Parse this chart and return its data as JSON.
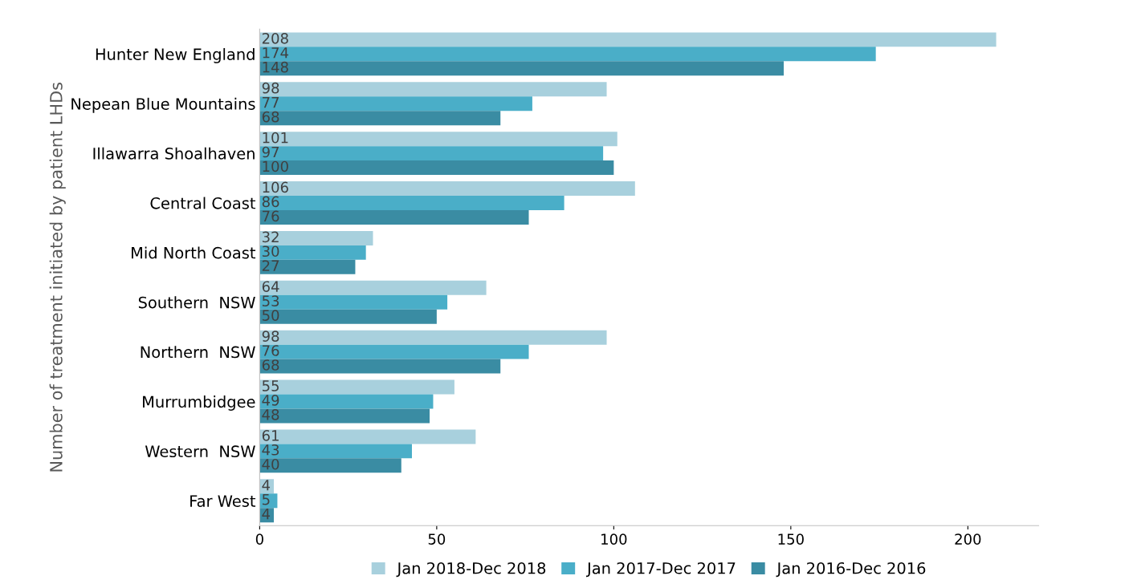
{
  "chart_data": {
    "type": "bar",
    "orientation": "horizontal",
    "ylabel": "Number of treatment initiated by patient LHDs",
    "categories": [
      "Hunter New England",
      "Nepean Blue Mountains",
      "Illawarra Shoalhaven",
      "Central Coast",
      "Mid North Coast",
      "Southern  NSW",
      "Northern  NSW",
      "Murrumbidgee",
      "Western  NSW",
      "Far West"
    ],
    "series": [
      {
        "name": "Jan 2018-Dec 2018",
        "color": "#a8d0dd",
        "values": [
          208,
          98,
          101,
          106,
          32,
          64,
          98,
          55,
          61,
          4
        ]
      },
      {
        "name": "Jan 2017-Dec 2017",
        "color": "#4aaec8",
        "values": [
          174,
          77,
          97,
          86,
          30,
          53,
          76,
          49,
          43,
          5
        ]
      },
      {
        "name": "Jan 2016-Dec 2016",
        "color": "#3a8ca3",
        "values": [
          148,
          68,
          100,
          76,
          27,
          50,
          68,
          48,
          40,
          4
        ]
      }
    ],
    "xlim": [
      0,
      220
    ],
    "xticks": [
      0,
      50,
      100,
      150,
      200
    ],
    "data_labels": true,
    "grid": false,
    "legend": "bottom"
  }
}
